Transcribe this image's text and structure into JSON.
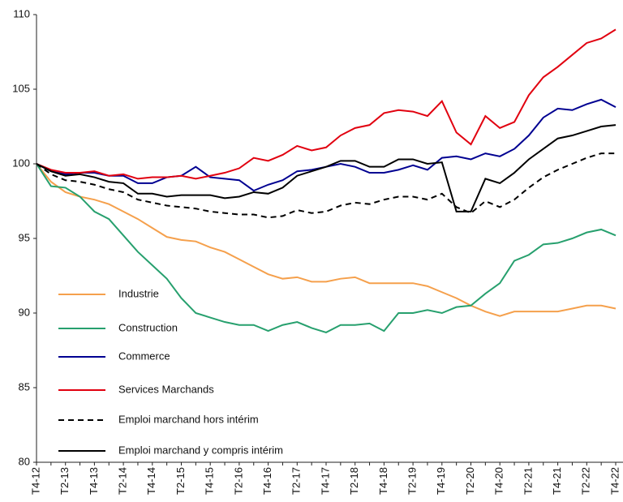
{
  "chart_data": {
    "type": "line",
    "categories": [
      "T4-12",
      null,
      "T2-13",
      null,
      "T4-13",
      null,
      "T2-14",
      null,
      "T4-14",
      null,
      "T2-15",
      null,
      "T4-15",
      null,
      "T2-16",
      null,
      "T4-16",
      null,
      "T2-17",
      null,
      "T4-17",
      null,
      "T2-18",
      null,
      "T4-18",
      null,
      "T2-19",
      null,
      "T4-19",
      null,
      "T2-20",
      null,
      "T4-20",
      null,
      "T2-21",
      null,
      "T4-21",
      null,
      "T2-22",
      null,
      "T4-22"
    ],
    "series": [
      {
        "name": "Industrie",
        "color": "#f5a04c",
        "dash": false,
        "values": [
          100,
          98.8,
          98.1,
          97.8,
          97.6,
          97.3,
          96.8,
          96.3,
          95.7,
          95.1,
          94.9,
          94.8,
          94.4,
          94.1,
          93.6,
          93.1,
          92.6,
          92.3,
          92.4,
          92.1,
          92.1,
          92.3,
          92.4,
          92.0,
          92.0,
          92.0,
          92.0,
          91.8,
          91.4,
          91.0,
          90.5,
          90.1,
          89.8,
          90.1,
          90.1,
          90.1,
          90.1,
          90.3,
          90.5,
          90.5,
          90.3
        ]
      },
      {
        "name": "Construction",
        "color": "#27a06e",
        "dash": false,
        "values": [
          100,
          98.5,
          98.4,
          97.8,
          96.8,
          96.3,
          95.2,
          94.1,
          93.2,
          92.3,
          91.0,
          90.0,
          89.7,
          89.4,
          89.2,
          89.2,
          88.8,
          89.2,
          89.4,
          89.0,
          88.7,
          89.2,
          89.2,
          89.3,
          88.8,
          90.0,
          90.0,
          90.2,
          90.0,
          90.4,
          90.5,
          91.3,
          92.0,
          93.5,
          93.9,
          94.6,
          94.7,
          95.0,
          95.4,
          95.6,
          95.2
        ]
      },
      {
        "name": "Commerce",
        "color": "#000091",
        "dash": false,
        "values": [
          100,
          99.5,
          99.3,
          99.4,
          99.4,
          99.2,
          99.2,
          98.7,
          98.7,
          99.1,
          99.2,
          99.8,
          99.1,
          99.0,
          98.9,
          98.2,
          98.6,
          98.9,
          99.5,
          99.6,
          99.8,
          100.0,
          99.8,
          99.4,
          99.4,
          99.6,
          99.9,
          99.6,
          100.4,
          100.5,
          100.3,
          100.7,
          100.5,
          101.0,
          101.9,
          103.1,
          103.7,
          103.6,
          104.0,
          104.3,
          103.8
        ]
      },
      {
        "name": "Services Marchands",
        "color": "#e1000f",
        "dash": false,
        "values": [
          100,
          99.6,
          99.4,
          99.4,
          99.5,
          99.2,
          99.3,
          99.0,
          99.1,
          99.1,
          99.2,
          99.0,
          99.2,
          99.4,
          99.7,
          100.4,
          100.2,
          100.6,
          101.2,
          100.9,
          101.1,
          101.9,
          102.4,
          102.6,
          103.4,
          103.6,
          103.5,
          103.2,
          104.2,
          102.1,
          101.3,
          103.2,
          102.4,
          102.8,
          104.6,
          105.8,
          106.5,
          107.3,
          108.1,
          108.4,
          109.0
        ]
      },
      {
        "name": "Emploi marchand hors intérim",
        "color": "#000000",
        "dash": true,
        "values": [
          100,
          99.3,
          98.9,
          98.8,
          98.6,
          98.3,
          98.1,
          97.6,
          97.4,
          97.2,
          97.1,
          97.0,
          96.8,
          96.7,
          96.6,
          96.6,
          96.4,
          96.5,
          96.9,
          96.7,
          96.8,
          97.2,
          97.4,
          97.3,
          97.6,
          97.8,
          97.8,
          97.6,
          98.0,
          97.1,
          96.7,
          97.5,
          97.1,
          97.6,
          98.4,
          99.1,
          99.6,
          100.0,
          100.4,
          100.7,
          100.7
        ]
      },
      {
        "name": "Emploi marchand y compris intérim",
        "color": "#000000",
        "dash": false,
        "values": [
          100,
          99.5,
          99.2,
          99.3,
          99.1,
          98.8,
          98.7,
          98.0,
          98.0,
          97.8,
          97.9,
          97.9,
          97.9,
          97.7,
          97.8,
          98.1,
          98.0,
          98.4,
          99.2,
          99.5,
          99.8,
          100.2,
          100.2,
          99.8,
          99.8,
          100.3,
          100.3,
          100.0,
          100.1,
          96.8,
          96.8,
          99.0,
          98.7,
          99.4,
          100.3,
          101.0,
          101.7,
          101.9,
          102.2,
          102.5,
          102.6
        ]
      }
    ],
    "ylim": [
      80,
      110
    ],
    "yticks": [
      80,
      85,
      90,
      95,
      100,
      105,
      110
    ],
    "grid": false,
    "legend": "lower left"
  }
}
